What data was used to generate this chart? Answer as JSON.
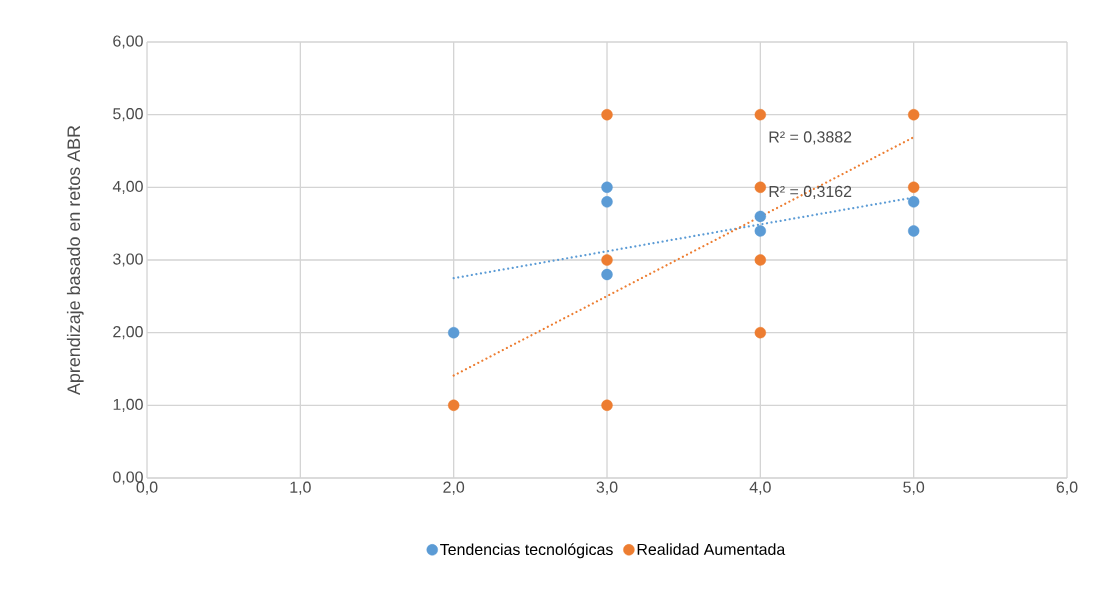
{
  "chart_data": {
    "type": "scatter",
    "ylabel": "Aprendizaje basado en retos ABR",
    "xlim": [
      0,
      6
    ],
    "ylim": [
      0,
      6
    ],
    "xticks": [
      {
        "value": 0,
        "label": "0,0"
      },
      {
        "value": 1,
        "label": "1,0"
      },
      {
        "value": 2,
        "label": "2,0"
      },
      {
        "value": 3,
        "label": "3,0"
      },
      {
        "value": 4,
        "label": "4,0"
      },
      {
        "value": 5,
        "label": "5,0"
      },
      {
        "value": 6,
        "label": "6,0"
      }
    ],
    "yticks": [
      {
        "value": 0,
        "label": "0,00"
      },
      {
        "value": 1,
        "label": "1,00"
      },
      {
        "value": 2,
        "label": "2,00"
      },
      {
        "value": 3,
        "label": "3,00"
      },
      {
        "value": 4,
        "label": "4,00"
      },
      {
        "value": 5,
        "label": "5,00"
      },
      {
        "value": 6,
        "label": "6,00"
      }
    ],
    "grid": true,
    "legend": "bottom",
    "marker": "circle",
    "series": [
      {
        "name": "Tendencias tecnológicas",
        "color": "#5b9bd5",
        "x": [
          2,
          3,
          3,
          3,
          4,
          4,
          5,
          5
        ],
        "values": [
          2,
          4,
          3.8,
          2.8,
          3.6,
          3.4,
          3.8,
          3.4
        ]
      },
      {
        "name": "Realidad Aumentada",
        "color": "#ed7d31",
        "x": [
          2,
          3,
          3,
          3,
          4,
          4,
          4,
          4,
          5,
          5
        ],
        "values": [
          1,
          5,
          3,
          1,
          5,
          4,
          3,
          2,
          5,
          4
        ]
      },
      {
        "type": "line",
        "color": "#5b9bd5",
        "line_style": "dotted",
        "marker": "none",
        "x": [
          2,
          5
        ],
        "values": [
          2.75,
          3.86
        ]
      },
      {
        "type": "line",
        "color": "#ed7d31",
        "line_style": "dotted",
        "marker": "none",
        "x": [
          2,
          5
        ],
        "values": [
          1.41,
          4.69
        ]
      }
    ],
    "annotations": [
      "R² = 0,3882",
      "R² = 0,3162"
    ]
  }
}
